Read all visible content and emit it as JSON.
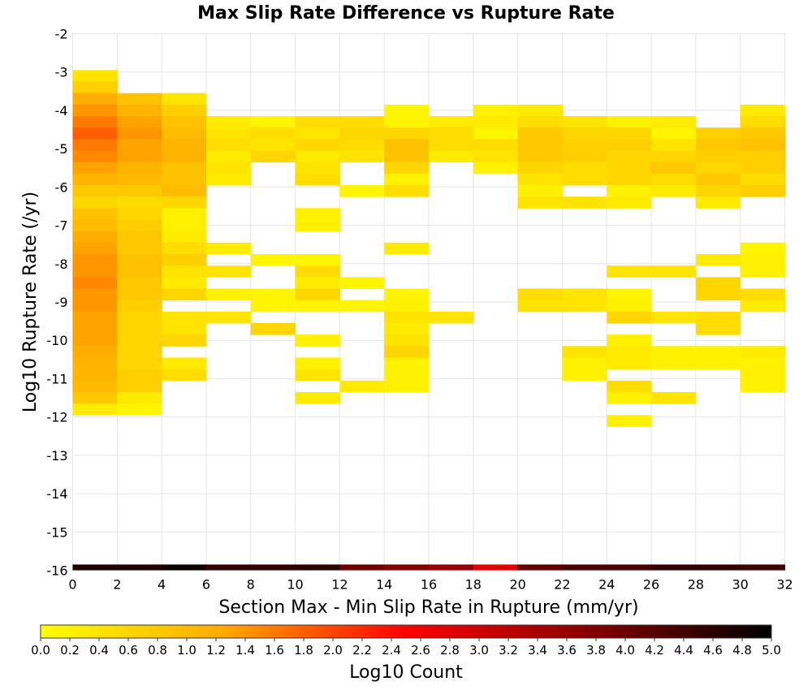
{
  "chart_data": {
    "type": "heatmap",
    "title": "Max Slip Rate Difference vs Rupture Rate",
    "xlabel": "Section Max - Min Slip Rate in Rupture (mm/yr)",
    "ylabel": "Log10 Rupture Rate (/yr)",
    "xlim": [
      0,
      32
    ],
    "ylim": [
      -16,
      -2
    ],
    "grid": true,
    "x_ticks": [
      "0",
      "2",
      "4",
      "6",
      "8",
      "10",
      "12",
      "14",
      "16",
      "18",
      "20",
      "22",
      "24",
      "26",
      "28",
      "30",
      "32"
    ],
    "y_ticks": [
      "-2",
      "-3",
      "-4",
      "-5",
      "-6",
      "-7",
      "-8",
      "-9",
      "-10",
      "-11",
      "-12",
      "-13",
      "-14",
      "-15",
      "-16"
    ],
    "x_bin_width": 2,
    "y_bin_height": 0.3,
    "colorbar": {
      "label": "Log10 Count",
      "min": 0.0,
      "max": 5.0,
      "ticks": [
        "0.0",
        "0.2",
        "0.4",
        "0.6",
        "0.8",
        "1.0",
        "1.2",
        "1.4",
        "1.6",
        "1.8",
        "2.0",
        "2.2",
        "2.4",
        "2.6",
        "2.8",
        "3.0",
        "3.2",
        "3.4",
        "3.6",
        "3.8",
        "4.0",
        "4.2",
        "4.4",
        "4.6",
        "4.8",
        "5.0"
      ],
      "stops": [
        "#ffff00",
        "#ffaa00",
        "#ff0000",
        "#880000",
        "#000000"
      ],
      "position": "bottom"
    },
    "cells": [
      {
        "x": 0,
        "y": -3.1,
        "v": 0.4
      },
      {
        "x": 0,
        "y": -3.4,
        "v": 0.7
      },
      {
        "x": 0,
        "y": -3.7,
        "v": 1.2
      },
      {
        "x": 0,
        "y": -4.0,
        "v": 1.4
      },
      {
        "x": 0,
        "y": -4.3,
        "v": 1.6
      },
      {
        "x": 0,
        "y": -4.6,
        "v": 1.8
      },
      {
        "x": 0,
        "y": -4.9,
        "v": 1.6
      },
      {
        "x": 0,
        "y": -5.2,
        "v": 1.5
      },
      {
        "x": 0,
        "y": -5.5,
        "v": 1.3
      },
      {
        "x": 0,
        "y": -5.8,
        "v": 1.1
      },
      {
        "x": 0,
        "y": -6.1,
        "v": 0.8
      },
      {
        "x": 0,
        "y": -6.4,
        "v": 0.6
      },
      {
        "x": 0,
        "y": -6.7,
        "v": 0.9
      },
      {
        "x": 0,
        "y": -7.0,
        "v": 1.0
      },
      {
        "x": 0,
        "y": -7.3,
        "v": 1.2
      },
      {
        "x": 0,
        "y": -7.6,
        "v": 1.3
      },
      {
        "x": 0,
        "y": -7.9,
        "v": 1.4
      },
      {
        "x": 0,
        "y": -8.2,
        "v": 1.4
      },
      {
        "x": 0,
        "y": -8.5,
        "v": 1.5
      },
      {
        "x": 0,
        "y": -8.8,
        "v": 1.4
      },
      {
        "x": 0,
        "y": -9.1,
        "v": 1.4
      },
      {
        "x": 0,
        "y": -9.4,
        "v": 1.3
      },
      {
        "x": 0,
        "y": -9.7,
        "v": 1.3
      },
      {
        "x": 0,
        "y": -10.0,
        "v": 1.3
      },
      {
        "x": 0,
        "y": -10.3,
        "v": 1.2
      },
      {
        "x": 0,
        "y": -10.6,
        "v": 1.1
      },
      {
        "x": 0,
        "y": -10.9,
        "v": 1.1
      },
      {
        "x": 0,
        "y": -11.2,
        "v": 1.0
      },
      {
        "x": 0,
        "y": -11.5,
        "v": 0.8
      },
      {
        "x": 0,
        "y": -11.8,
        "v": 0.3
      },
      {
        "x": 2,
        "y": -3.7,
        "v": 0.9
      },
      {
        "x": 2,
        "y": -4.0,
        "v": 1.1
      },
      {
        "x": 2,
        "y": -4.3,
        "v": 1.3
      },
      {
        "x": 2,
        "y": -4.6,
        "v": 1.4
      },
      {
        "x": 2,
        "y": -4.9,
        "v": 1.3
      },
      {
        "x": 2,
        "y": -5.2,
        "v": 1.3
      },
      {
        "x": 2,
        "y": -5.5,
        "v": 1.1
      },
      {
        "x": 2,
        "y": -5.8,
        "v": 1.0
      },
      {
        "x": 2,
        "y": -6.1,
        "v": 0.8
      },
      {
        "x": 2,
        "y": -6.4,
        "v": 0.5
      },
      {
        "x": 2,
        "y": -6.7,
        "v": 0.6
      },
      {
        "x": 2,
        "y": -7.0,
        "v": 0.7
      },
      {
        "x": 2,
        "y": -7.3,
        "v": 0.8
      },
      {
        "x": 2,
        "y": -7.6,
        "v": 0.8
      },
      {
        "x": 2,
        "y": -7.9,
        "v": 0.9
      },
      {
        "x": 2,
        "y": -8.2,
        "v": 0.9
      },
      {
        "x": 2,
        "y": -8.5,
        "v": 0.8
      },
      {
        "x": 2,
        "y": -8.8,
        "v": 0.8
      },
      {
        "x": 2,
        "y": -9.1,
        "v": 0.7
      },
      {
        "x": 2,
        "y": -9.4,
        "v": 0.6
      },
      {
        "x": 2,
        "y": -9.7,
        "v": 0.6
      },
      {
        "x": 2,
        "y": -10.0,
        "v": 0.6
      },
      {
        "x": 2,
        "y": -10.3,
        "v": 0.6
      },
      {
        "x": 2,
        "y": -10.6,
        "v": 0.6
      },
      {
        "x": 2,
        "y": -10.9,
        "v": 0.7
      },
      {
        "x": 2,
        "y": -11.2,
        "v": 0.7
      },
      {
        "x": 2,
        "y": -11.5,
        "v": 0.3
      },
      {
        "x": 2,
        "y": -11.8,
        "v": 0.15
      },
      {
        "x": 4,
        "y": -3.7,
        "v": 0.4
      },
      {
        "x": 4,
        "y": -4.0,
        "v": 0.7
      },
      {
        "x": 4,
        "y": -4.3,
        "v": 0.9
      },
      {
        "x": 4,
        "y": -4.6,
        "v": 1.0
      },
      {
        "x": 4,
        "y": -4.9,
        "v": 1.1
      },
      {
        "x": 4,
        "y": -5.2,
        "v": 1.1
      },
      {
        "x": 4,
        "y": -5.5,
        "v": 0.9
      },
      {
        "x": 4,
        "y": -5.8,
        "v": 0.9
      },
      {
        "x": 4,
        "y": -6.1,
        "v": 1.0
      },
      {
        "x": 4,
        "y": -6.4,
        "v": 0.6
      },
      {
        "x": 4,
        "y": -6.7,
        "v": 0.2
      },
      {
        "x": 4,
        "y": -7.0,
        "v": 0.2
      },
      {
        "x": 4,
        "y": -7.3,
        "v": 0.3
      },
      {
        "x": 4,
        "y": -7.6,
        "v": 0.5
      },
      {
        "x": 4,
        "y": -7.9,
        "v": 0.7
      },
      {
        "x": 4,
        "y": -8.2,
        "v": 0.4
      },
      {
        "x": 4,
        "y": -8.5,
        "v": 0.3
      },
      {
        "x": 4,
        "y": -8.8,
        "v": 0.6
      },
      {
        "x": 4,
        "y": -9.4,
        "v": 0.4
      },
      {
        "x": 4,
        "y": -9.7,
        "v": 0.4
      },
      {
        "x": 4,
        "y": -10.0,
        "v": 0.6
      },
      {
        "x": 4,
        "y": -10.6,
        "v": 0.3
      },
      {
        "x": 4,
        "y": -10.9,
        "v": 0.5
      },
      {
        "x": 6,
        "y": -4.3,
        "v": 0.3
      },
      {
        "x": 6,
        "y": -4.6,
        "v": 0.4
      },
      {
        "x": 6,
        "y": -4.9,
        "v": 0.5
      },
      {
        "x": 6,
        "y": -5.2,
        "v": 0.3
      },
      {
        "x": 6,
        "y": -5.5,
        "v": 0.4
      },
      {
        "x": 6,
        "y": -5.8,
        "v": 0.3
      },
      {
        "x": 6,
        "y": -7.6,
        "v": 0.3
      },
      {
        "x": 6,
        "y": -8.2,
        "v": 0.4
      },
      {
        "x": 6,
        "y": -8.8,
        "v": 0.2
      },
      {
        "x": 6,
        "y": -9.4,
        "v": 0.4
      },
      {
        "x": 8,
        "y": -4.3,
        "v": 0.15
      },
      {
        "x": 8,
        "y": -4.6,
        "v": 0.5
      },
      {
        "x": 8,
        "y": -4.9,
        "v": 0.4
      },
      {
        "x": 8,
        "y": -5.2,
        "v": 0.6
      },
      {
        "x": 8,
        "y": -7.9,
        "v": 0.15
      },
      {
        "x": 8,
        "y": -8.8,
        "v": 0.15
      },
      {
        "x": 8,
        "y": -9.1,
        "v": 0.15
      },
      {
        "x": 8,
        "y": -9.7,
        "v": 0.6
      },
      {
        "x": 10,
        "y": -4.3,
        "v": 0.5
      },
      {
        "x": 10,
        "y": -4.6,
        "v": 0.4
      },
      {
        "x": 10,
        "y": -4.9,
        "v": 0.6
      },
      {
        "x": 10,
        "y": -5.2,
        "v": 0.3
      },
      {
        "x": 10,
        "y": -5.5,
        "v": 0.4
      },
      {
        "x": 10,
        "y": -5.8,
        "v": 0.5
      },
      {
        "x": 10,
        "y": -6.7,
        "v": 0.2
      },
      {
        "x": 10,
        "y": -7.0,
        "v": 0.2
      },
      {
        "x": 10,
        "y": -7.9,
        "v": 0.15
      },
      {
        "x": 10,
        "y": -8.2,
        "v": 0.5
      },
      {
        "x": 10,
        "y": -8.5,
        "v": 0.3
      },
      {
        "x": 10,
        "y": -8.8,
        "v": 0.6
      },
      {
        "x": 10,
        "y": -9.1,
        "v": 0.15
      },
      {
        "x": 10,
        "y": -10.0,
        "v": 0.2
      },
      {
        "x": 10,
        "y": -10.6,
        "v": 0.2
      },
      {
        "x": 10,
        "y": -10.9,
        "v": 0.4
      },
      {
        "x": 10,
        "y": -11.5,
        "v": 0.3
      },
      {
        "x": 12,
        "y": -4.3,
        "v": 0.5
      },
      {
        "x": 12,
        "y": -4.6,
        "v": 0.6
      },
      {
        "x": 12,
        "y": -4.9,
        "v": 0.5
      },
      {
        "x": 12,
        "y": -5.2,
        "v": 0.4
      },
      {
        "x": 12,
        "y": -6.1,
        "v": 0.15
      },
      {
        "x": 12,
        "y": -8.5,
        "v": 0.15
      },
      {
        "x": 12,
        "y": -9.1,
        "v": 0.15
      },
      {
        "x": 12,
        "y": -11.2,
        "v": 0.3
      },
      {
        "x": 14,
        "y": -4.0,
        "v": 0.15
      },
      {
        "x": 14,
        "y": -4.3,
        "v": 0.15
      },
      {
        "x": 14,
        "y": -4.6,
        "v": 0.6
      },
      {
        "x": 14,
        "y": -4.9,
        "v": 0.9
      },
      {
        "x": 14,
        "y": -5.2,
        "v": 0.9
      },
      {
        "x": 14,
        "y": -5.5,
        "v": 0.6
      },
      {
        "x": 14,
        "y": -5.8,
        "v": 0.2
      },
      {
        "x": 14,
        "y": -6.1,
        "v": 0.5
      },
      {
        "x": 14,
        "y": -7.6,
        "v": 0.3
      },
      {
        "x": 14,
        "y": -8.8,
        "v": 0.15
      },
      {
        "x": 14,
        "y": -9.1,
        "v": 0.2
      },
      {
        "x": 14,
        "y": -9.4,
        "v": 0.4
      },
      {
        "x": 14,
        "y": -9.7,
        "v": 0.3
      },
      {
        "x": 14,
        "y": -10.0,
        "v": 0.4
      },
      {
        "x": 14,
        "y": -10.3,
        "v": 0.6
      },
      {
        "x": 14,
        "y": -10.6,
        "v": 0.2
      },
      {
        "x": 14,
        "y": -10.9,
        "v": 0.2
      },
      {
        "x": 14,
        "y": -11.2,
        "v": 0.2
      },
      {
        "x": 16,
        "y": -4.3,
        "v": 0.3
      },
      {
        "x": 16,
        "y": -4.6,
        "v": 0.5
      },
      {
        "x": 16,
        "y": -4.9,
        "v": 0.5
      },
      {
        "x": 16,
        "y": -5.2,
        "v": 0.3
      },
      {
        "x": 16,
        "y": -9.4,
        "v": 0.4
      },
      {
        "x": 18,
        "y": -4.0,
        "v": 0.2
      },
      {
        "x": 18,
        "y": -4.3,
        "v": 0.3
      },
      {
        "x": 18,
        "y": -4.6,
        "v": 0.15
      },
      {
        "x": 18,
        "y": -4.9,
        "v": 0.5
      },
      {
        "x": 18,
        "y": -5.2,
        "v": 0.4
      },
      {
        "x": 18,
        "y": -5.5,
        "v": 0.2
      },
      {
        "x": 20,
        "y": -4.0,
        "v": 0.3
      },
      {
        "x": 20,
        "y": -4.3,
        "v": 0.5
      },
      {
        "x": 20,
        "y": -4.6,
        "v": 0.8
      },
      {
        "x": 20,
        "y": -4.9,
        "v": 0.8
      },
      {
        "x": 20,
        "y": -5.2,
        "v": 0.8
      },
      {
        "x": 20,
        "y": -5.5,
        "v": 0.6
      },
      {
        "x": 20,
        "y": -5.8,
        "v": 0.4
      },
      {
        "x": 20,
        "y": -6.1,
        "v": 0.2
      },
      {
        "x": 20,
        "y": -6.4,
        "v": 0.4
      },
      {
        "x": 20,
        "y": -8.8,
        "v": 0.5
      },
      {
        "x": 20,
        "y": -9.1,
        "v": 0.4
      },
      {
        "x": 22,
        "y": -4.3,
        "v": 0.4
      },
      {
        "x": 22,
        "y": -4.6,
        "v": 0.6
      },
      {
        "x": 22,
        "y": -4.9,
        "v": 0.7
      },
      {
        "x": 22,
        "y": -5.2,
        "v": 0.7
      },
      {
        "x": 22,
        "y": -5.5,
        "v": 0.5
      },
      {
        "x": 22,
        "y": -5.8,
        "v": 0.5
      },
      {
        "x": 22,
        "y": -6.4,
        "v": 0.4
      },
      {
        "x": 22,
        "y": -8.8,
        "v": 0.4
      },
      {
        "x": 22,
        "y": -9.1,
        "v": 0.4
      },
      {
        "x": 22,
        "y": -10.3,
        "v": 0.4
      },
      {
        "x": 22,
        "y": -10.6,
        "v": 0.2
      },
      {
        "x": 22,
        "y": -10.9,
        "v": 0.2
      },
      {
        "x": 24,
        "y": -4.3,
        "v": 0.2
      },
      {
        "x": 24,
        "y": -4.6,
        "v": 0.6
      },
      {
        "x": 24,
        "y": -4.9,
        "v": 0.7
      },
      {
        "x": 24,
        "y": -5.2,
        "v": 0.6
      },
      {
        "x": 24,
        "y": -5.5,
        "v": 0.6
      },
      {
        "x": 24,
        "y": -5.8,
        "v": 0.6
      },
      {
        "x": 24,
        "y": -6.1,
        "v": 0.2
      },
      {
        "x": 24,
        "y": -6.4,
        "v": 0.3
      },
      {
        "x": 24,
        "y": -8.2,
        "v": 0.4
      },
      {
        "x": 24,
        "y": -8.8,
        "v": 0.15
      },
      {
        "x": 24,
        "y": -9.1,
        "v": 0.2
      },
      {
        "x": 24,
        "y": -9.4,
        "v": 0.6
      },
      {
        "x": 24,
        "y": -10.0,
        "v": 0.2
      },
      {
        "x": 24,
        "y": -10.3,
        "v": 0.3
      },
      {
        "x": 24,
        "y": -10.6,
        "v": 0.3
      },
      {
        "x": 24,
        "y": -11.2,
        "v": 0.5
      },
      {
        "x": 24,
        "y": -11.5,
        "v": 0.2
      },
      {
        "x": 24,
        "y": -12.1,
        "v": 0.2
      },
      {
        "x": 26,
        "y": -4.3,
        "v": 0.3
      },
      {
        "x": 26,
        "y": -4.6,
        "v": 0.15
      },
      {
        "x": 26,
        "y": -4.9,
        "v": 0.4
      },
      {
        "x": 26,
        "y": -5.2,
        "v": 0.6
      },
      {
        "x": 26,
        "y": -5.5,
        "v": 0.8
      },
      {
        "x": 26,
        "y": -5.8,
        "v": 0.5
      },
      {
        "x": 26,
        "y": -6.1,
        "v": 0.3
      },
      {
        "x": 26,
        "y": -8.2,
        "v": 0.4
      },
      {
        "x": 26,
        "y": -9.4,
        "v": 0.4
      },
      {
        "x": 26,
        "y": -10.3,
        "v": 0.2
      },
      {
        "x": 26,
        "y": -10.6,
        "v": 0.2
      },
      {
        "x": 26,
        "y": -11.5,
        "v": 0.4
      },
      {
        "x": 28,
        "y": -4.6,
        "v": 0.7
      },
      {
        "x": 28,
        "y": -4.9,
        "v": 0.8
      },
      {
        "x": 28,
        "y": -5.2,
        "v": 0.7
      },
      {
        "x": 28,
        "y": -5.5,
        "v": 0.6
      },
      {
        "x": 28,
        "y": -5.8,
        "v": 0.8
      },
      {
        "x": 28,
        "y": -6.1,
        "v": 0.6
      },
      {
        "x": 28,
        "y": -6.4,
        "v": 0.3
      },
      {
        "x": 28,
        "y": -7.9,
        "v": 0.3
      },
      {
        "x": 28,
        "y": -8.5,
        "v": 0.6
      },
      {
        "x": 28,
        "y": -8.8,
        "v": 0.6
      },
      {
        "x": 28,
        "y": -9.4,
        "v": 0.5
      },
      {
        "x": 28,
        "y": -9.7,
        "v": 0.5
      },
      {
        "x": 28,
        "y": -10.3,
        "v": 0.2
      },
      {
        "x": 28,
        "y": -10.6,
        "v": 0.2
      },
      {
        "x": 30,
        "y": -4.0,
        "v": 0.3
      },
      {
        "x": 30,
        "y": -4.3,
        "v": 0.5
      },
      {
        "x": 30,
        "y": -4.6,
        "v": 0.8
      },
      {
        "x": 30,
        "y": -4.9,
        "v": 0.9
      },
      {
        "x": 30,
        "y": -5.2,
        "v": 0.7
      },
      {
        "x": 30,
        "y": -5.5,
        "v": 0.7
      },
      {
        "x": 30,
        "y": -5.8,
        "v": 0.5
      },
      {
        "x": 30,
        "y": -6.1,
        "v": 0.7
      },
      {
        "x": 30,
        "y": -7.6,
        "v": 0.15
      },
      {
        "x": 30,
        "y": -7.9,
        "v": 0.2
      },
      {
        "x": 30,
        "y": -8.2,
        "v": 0.2
      },
      {
        "x": 30,
        "y": -8.8,
        "v": 0.5
      },
      {
        "x": 30,
        "y": -9.1,
        "v": 0.3
      },
      {
        "x": 30,
        "y": -10.3,
        "v": 0.3
      },
      {
        "x": 30,
        "y": -10.6,
        "v": 0.2
      },
      {
        "x": 30,
        "y": -10.9,
        "v": 0.2
      },
      {
        "x": 30,
        "y": -11.2,
        "v": 0.2
      }
    ],
    "bottom_row": {
      "y": -16,
      "values": [
        4.7,
        4.7,
        4.9,
        4.5,
        4.5,
        4.6,
        4.0,
        3.8,
        3.6,
        2.8,
        4.1,
        4.3,
        4.3,
        4.5,
        4.5,
        4.4
      ]
    }
  }
}
